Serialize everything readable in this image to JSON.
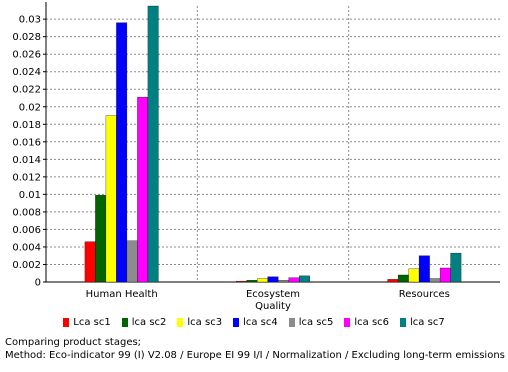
{
  "chart_data": {
    "type": "bar",
    "categories": [
      "Human Health",
      "Ecosystem\nQuality",
      "Resources"
    ],
    "series": [
      {
        "name": "Lca sc1",
        "color": "#ff0000",
        "values": [
          0.0046,
          0.0001,
          0.0003
        ]
      },
      {
        "name": "lca sc2",
        "color": "#006400",
        "values": [
          0.0099,
          0.0002,
          0.0008
        ]
      },
      {
        "name": "lca sc3",
        "color": "#ffff00",
        "values": [
          0.019,
          0.0004,
          0.0015
        ]
      },
      {
        "name": "lca sc4",
        "color": "#0000ff",
        "values": [
          0.0296,
          0.0006,
          0.003
        ]
      },
      {
        "name": "lca sc5",
        "color": "#8c8c8c",
        "values": [
          0.0047,
          0.0002,
          0.0004
        ]
      },
      {
        "name": "lca sc6",
        "color": "#ff00ff",
        "values": [
          0.0211,
          0.0005,
          0.0016
        ]
      },
      {
        "name": "lca sc7",
        "color": "#008080",
        "values": [
          0.0315,
          0.0007,
          0.0033
        ]
      }
    ],
    "y_ticks": [
      "0",
      "0.002",
      "0.004",
      "0.006",
      "0.008",
      "0.01",
      "0.012",
      "0.014",
      "0.016",
      "0.018",
      "0.02",
      "0.022",
      "0.024",
      "0.026",
      "0.028",
      "0.03"
    ],
    "ylim": [
      0,
      0.0315
    ],
    "grid": true,
    "legend_position": "bottom"
  },
  "caption": {
    "line1": "Comparing product stages;",
    "line2": "Method: Eco-indicator 99 (I) V2.08 / Europe EI 99 I/I / Normalization / Excluding long-term emissions"
  }
}
